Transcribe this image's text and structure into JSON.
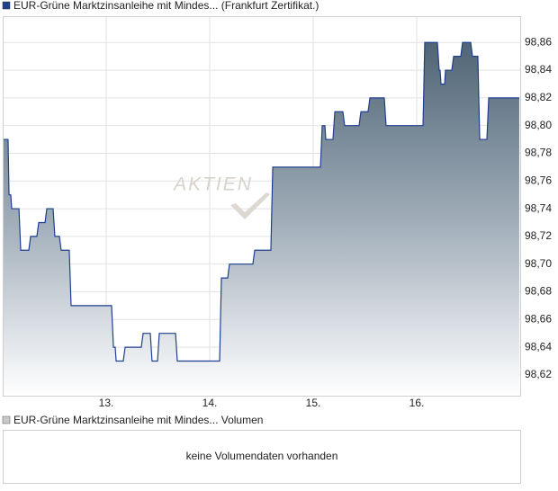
{
  "chart_data": {
    "type": "area",
    "series": [
      {
        "name": "EUR-Grüne Marktzinsanleihe mit Mindes... (Frankfurt Zertifikat.)",
        "color": "#1f3f8f",
        "values": [
          98.79,
          98.79,
          98.75,
          98.75,
          98.74,
          98.74,
          98.71,
          98.71,
          98.72,
          98.72,
          98.73,
          98.73,
          98.74,
          98.74,
          98.72,
          98.72,
          98.71,
          98.71,
          98.67,
          98.67,
          98.64,
          98.64,
          98.63,
          98.63,
          98.64,
          98.64,
          98.65,
          98.65,
          98.63,
          98.63,
          98.65,
          98.65,
          98.63,
          98.63,
          98.69,
          98.69,
          98.7,
          98.7,
          98.71,
          98.71,
          98.77,
          98.77,
          98.8,
          98.8,
          98.79,
          98.79,
          98.81,
          98.81,
          98.8,
          98.8,
          98.81,
          98.81,
          98.82,
          98.82,
          98.8,
          98.8,
          98.86,
          98.86,
          98.84,
          98.84,
          98.83,
          98.83,
          98.84,
          98.84,
          98.85,
          98.85,
          98.86,
          98.86,
          98.85,
          98.85,
          98.79,
          98.79,
          98.82,
          98.82
        ]
      }
    ],
    "x": [
      12.0,
      12.052,
      12.061,
      12.078,
      12.087,
      12.157,
      12.174,
      12.252,
      12.27,
      12.33,
      12.348,
      12.409,
      12.426,
      12.487,
      12.504,
      12.548,
      12.565,
      12.643,
      12.661,
      13.052,
      13.07,
      13.087,
      13.096,
      13.165,
      13.183,
      13.339,
      13.357,
      13.426,
      13.443,
      13.496,
      13.513,
      13.67,
      13.687,
      14.096,
      14.113,
      14.174,
      14.191,
      14.417,
      14.435,
      14.591,
      14.609,
      15.07,
      15.087,
      15.113,
      15.122,
      15.191,
      15.209,
      15.287,
      15.304,
      15.443,
      15.461,
      15.53,
      15.548,
      15.687,
      15.704,
      16.061,
      16.078,
      16.2,
      16.217,
      16.226,
      16.235,
      16.27,
      16.278,
      16.339,
      16.357,
      16.426,
      16.443,
      16.522,
      16.539,
      16.591,
      16.609,
      16.678,
      16.696,
      16.991
    ],
    "xlim": [
      12,
      17
    ],
    "ylim": [
      98.605,
      98.879
    ],
    "xticks": [
      {
        "value": 13,
        "label": "13."
      },
      {
        "value": 14,
        "label": "14."
      },
      {
        "value": 15,
        "label": "15."
      },
      {
        "value": 16,
        "label": "16."
      }
    ],
    "yticks": [
      {
        "value": 98.62,
        "label": "98,62"
      },
      {
        "value": 98.64,
        "label": "98,64"
      },
      {
        "value": 98.66,
        "label": "98,66"
      },
      {
        "value": 98.68,
        "label": "98,68"
      },
      {
        "value": 98.7,
        "label": "98,70"
      },
      {
        "value": 98.72,
        "label": "98,72"
      },
      {
        "value": 98.74,
        "label": "98,74"
      },
      {
        "value": 98.76,
        "label": "98,76"
      },
      {
        "value": 98.78,
        "label": "98,78"
      },
      {
        "value": 98.8,
        "label": "98,80"
      },
      {
        "value": 98.82,
        "label": "98,82"
      },
      {
        "value": 98.84,
        "label": "98,84"
      },
      {
        "value": 98.86,
        "label": "98,86"
      }
    ],
    "grid": true,
    "watermark": "AKTIEN"
  },
  "volume_panel": {
    "legend": "EUR-Grüne Marktzinsanleihe mit Mindes... Volumen",
    "message": "keine Volumendaten vorhanden"
  }
}
